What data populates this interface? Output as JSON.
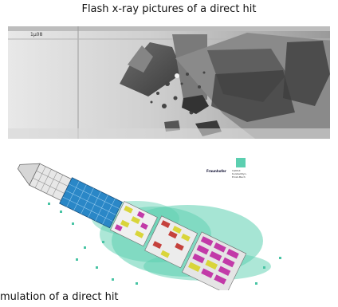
{
  "xray": {
    "title": "Flash x-ray pictures of a direct hit",
    "frame_label": "1μ08"
  },
  "simulation": {
    "title": "mulation of a direct hit",
    "legend": {
      "logo": "Fraunhofer",
      "lines": [
        "Institut",
        "Kurzzeitdyn.",
        "Ernst-Mach"
      ],
      "swatch_color": "#5ccfb0"
    }
  }
}
